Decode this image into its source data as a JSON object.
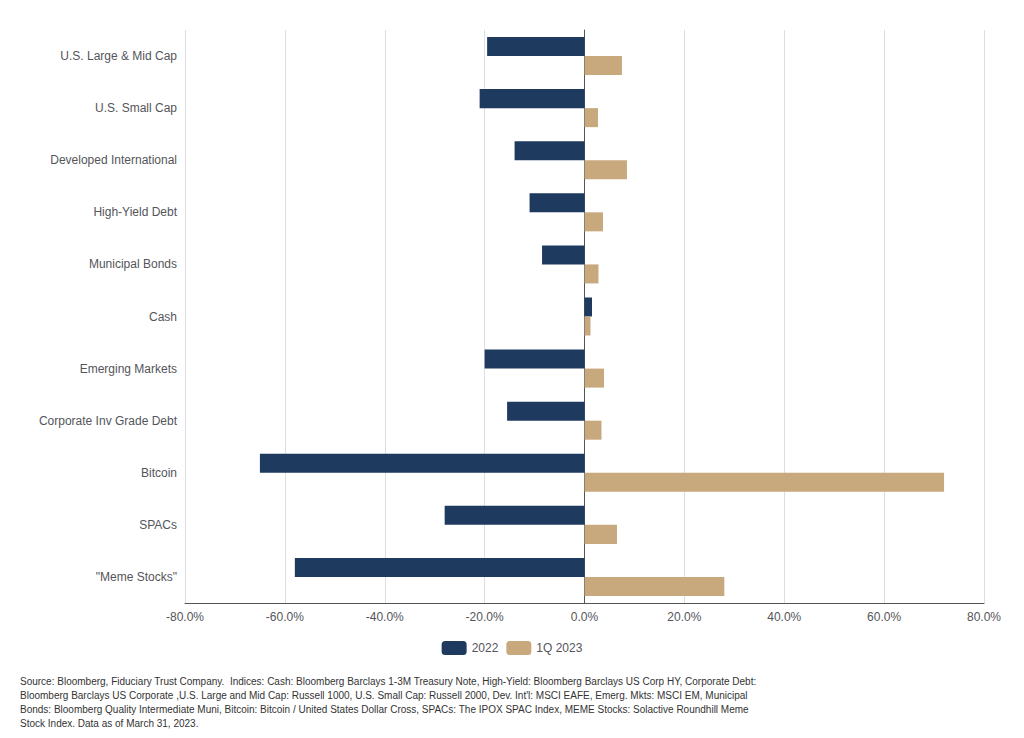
{
  "chart_data": {
    "type": "bar",
    "orientation": "horizontal",
    "categories": [
      "\"Meme Stocks\"",
      "SPACs",
      "Bitcoin",
      "Corporate Inv Grade Debt",
      "Emerging Markets",
      "Cash",
      "Municipal Bonds",
      "High-Yield Debt",
      "Developed International",
      "U.S. Small Cap",
      "U.S. Large & Mid Cap"
    ],
    "series": [
      {
        "name": "2022",
        "color": "#1e3a5f",
        "values": [
          -58.0,
          -28.0,
          -65.0,
          -15.5,
          -20.0,
          1.5,
          -8.5,
          -11.0,
          -14.0,
          -21.0,
          -19.5
        ]
      },
      {
        "name": "1Q 2023",
        "color": "#c8a97e",
        "values": [
          28.0,
          6.5,
          72.0,
          3.4,
          3.9,
          1.2,
          2.8,
          3.7,
          8.5,
          2.7,
          7.5
        ]
      }
    ],
    "xlim": [
      -80,
      80
    ],
    "xticks": [
      {
        "value": -80,
        "label": "-80.0%"
      },
      {
        "value": -60,
        "label": "-60.0%"
      },
      {
        "value": -40,
        "label": "-40.0%"
      },
      {
        "value": -20,
        "label": "-20.0%"
      },
      {
        "value": 0,
        "label": "0.0%"
      },
      {
        "value": 20,
        "label": "20.0%"
      },
      {
        "value": 40,
        "label": "40.0%"
      },
      {
        "value": 60,
        "label": "60.0%"
      },
      {
        "value": 80,
        "label": "80.0%"
      }
    ],
    "grid": true,
    "legend": "bottom",
    "annotations": [
      "Source: Bloomberg, Fiduciary Trust Company.  Indices: Cash: Bloomberg Barclays 1-3M Treasury Note, High-Yield: Bloomberg Barclays US Corp HY, Corporate Debt:\nBloomberg Barclays US Corporate ,U.S. Large and Mid Cap: Russell 1000, U.S. Small Cap: Russell 2000, Dev. Int'l: MSCI EAFE, Emerg. Mkts: MSCI EM, Municipal\nBonds: Bloomberg Quality Intermediate Muni, Bitcoin: Bitcoin / United States Dollar Cross, SPACs: The IPOX SPAC Index, MEME Stocks: Solactive Roundhill Meme\nStock Index. Data as of March 31, 2023."
    ]
  }
}
